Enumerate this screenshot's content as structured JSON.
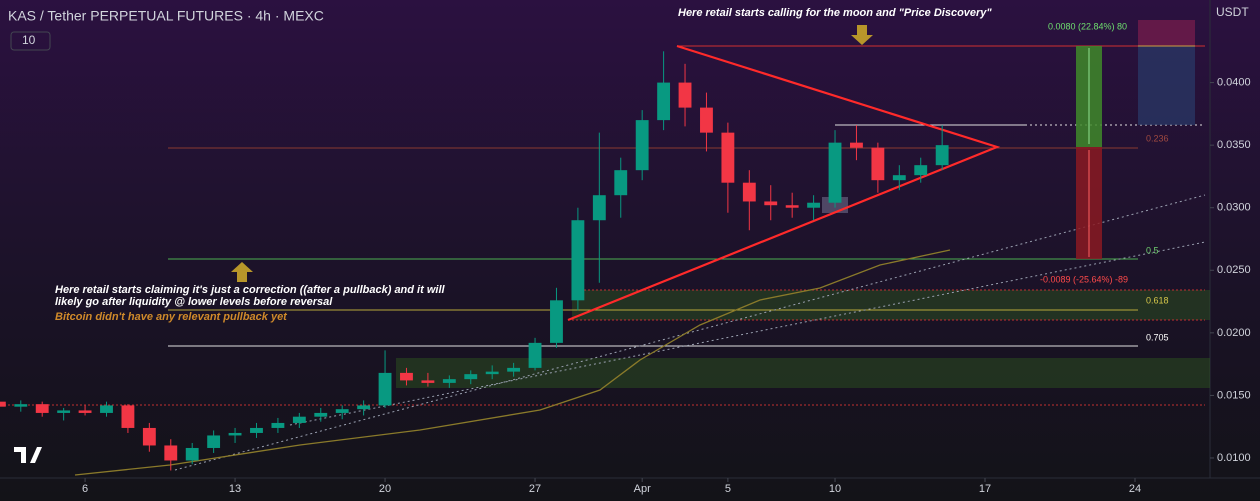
{
  "chart_data": {
    "type": "candlestick",
    "title": "KAS / Tether PERPETUAL FUTURES · 4h · MEXC",
    "indicator_label": "10",
    "currency_label": "USDT",
    "annotations": [
      "Here retail starts calling for the moon and \"Price Discovery\"",
      "Here retail starts claiming it's just a correction ((after a pullback) and it will",
      "likely go after liquidity @ lower levels before reversal",
      "Bitcoin didn't have any relevant pullback yet"
    ],
    "fib_labels": [
      "0.236",
      "0.5",
      "0.618",
      "0.705"
    ],
    "measure_labels": [
      "0.0080 (22.84%) 80",
      "-0.0089 (-25.64%) -89"
    ],
    "up_color": "#089981",
    "down_color": "#f23645",
    "grid": false,
    "xlim": [
      2.03,
      58.5
    ],
    "xticks": [
      6,
      13,
      20,
      27,
      {
        "value": 32,
        "label": "Apr"
      },
      {
        "value": 36,
        "label": "5"
      },
      {
        "value": 41,
        "label": "10"
      },
      {
        "value": 48,
        "label": "17"
      },
      {
        "value": 55,
        "label": "24"
      }
    ],
    "ylim": [
      0.0084,
      0.0466
    ],
    "yticks": [
      {
        "value": 0.04,
        "label": "0.0400"
      },
      {
        "value": 0.035,
        "label": "0.0350"
      },
      {
        "value": 0.03,
        "label": "0.0300"
      },
      {
        "value": 0.025,
        "label": "0.0250"
      },
      {
        "value": 0.02,
        "label": "0.0200"
      },
      {
        "value": 0.015,
        "label": "0.0150"
      },
      {
        "value": 0.01,
        "label": "0.0100"
      }
    ],
    "x": [
      2,
      3,
      4,
      5,
      6,
      7,
      8,
      9,
      10,
      11,
      12,
      13,
      14,
      15,
      16,
      17,
      18,
      19,
      20,
      21,
      22,
      23,
      24,
      25,
      26,
      27,
      28,
      29,
      30,
      31,
      32,
      33,
      34,
      35,
      36,
      37,
      38,
      39,
      40,
      41,
      42,
      43,
      44,
      45,
      46
    ],
    "open": [
      0.0145,
      0.0141,
      0.0143,
      0.0136,
      0.0138,
      0.0136,
      0.0142,
      0.0124,
      0.011,
      0.0098,
      0.0108,
      0.0118,
      0.012,
      0.0124,
      0.0128,
      0.0133,
      0.0136,
      0.0139,
      0.0142,
      0.0168,
      0.0162,
      0.016,
      0.0163,
      0.0167,
      0.0169,
      0.0172,
      0.0192,
      0.0226,
      0.029,
      0.031,
      0.033,
      0.037,
      0.04,
      0.038,
      0.036,
      0.032,
      0.0305,
      0.0302,
      0.03,
      0.0304,
      0.0352,
      0.0348,
      0.0322,
      0.0326,
      0.0334
    ],
    "high": [
      0.0148,
      0.0146,
      0.0145,
      0.014,
      0.0142,
      0.0145,
      0.0143,
      0.0128,
      0.0115,
      0.0112,
      0.0122,
      0.0124,
      0.0128,
      0.0132,
      0.0136,
      0.014,
      0.0142,
      0.0146,
      0.0186,
      0.0172,
      0.0168,
      0.0166,
      0.017,
      0.0174,
      0.0176,
      0.0196,
      0.0236,
      0.03,
      0.036,
      0.034,
      0.0378,
      0.0425,
      0.0415,
      0.0392,
      0.0368,
      0.033,
      0.0318,
      0.0312,
      0.031,
      0.0362,
      0.0366,
      0.0352,
      0.0334,
      0.034,
      0.0366
    ],
    "low": [
      0.0138,
      0.0137,
      0.0133,
      0.013,
      0.0134,
      0.0133,
      0.012,
      0.0105,
      0.009,
      0.0095,
      0.0104,
      0.0112,
      0.0116,
      0.012,
      0.0124,
      0.0129,
      0.0131,
      0.0134,
      0.014,
      0.0158,
      0.0157,
      0.0156,
      0.0159,
      0.0163,
      0.0165,
      0.017,
      0.0188,
      0.0218,
      0.024,
      0.0292,
      0.0322,
      0.0362,
      0.0365,
      0.0345,
      0.0296,
      0.0282,
      0.029,
      0.0292,
      0.029,
      0.03,
      0.0338,
      0.0312,
      0.0314,
      0.032,
      0.033
    ],
    "close": [
      0.0141,
      0.0143,
      0.0136,
      0.0138,
      0.0136,
      0.0142,
      0.0124,
      0.011,
      0.0098,
      0.0108,
      0.0118,
      0.012,
      0.0124,
      0.0128,
      0.0133,
      0.0136,
      0.0139,
      0.0142,
      0.0168,
      0.0162,
      0.016,
      0.0163,
      0.0167,
      0.0169,
      0.0172,
      0.0192,
      0.0226,
      0.029,
      0.031,
      0.033,
      0.037,
      0.04,
      0.038,
      0.036,
      0.032,
      0.0305,
      0.0302,
      0.03,
      0.0304,
      0.0352,
      0.0348,
      0.0322,
      0.0326,
      0.0334,
      0.035
    ]
  }
}
